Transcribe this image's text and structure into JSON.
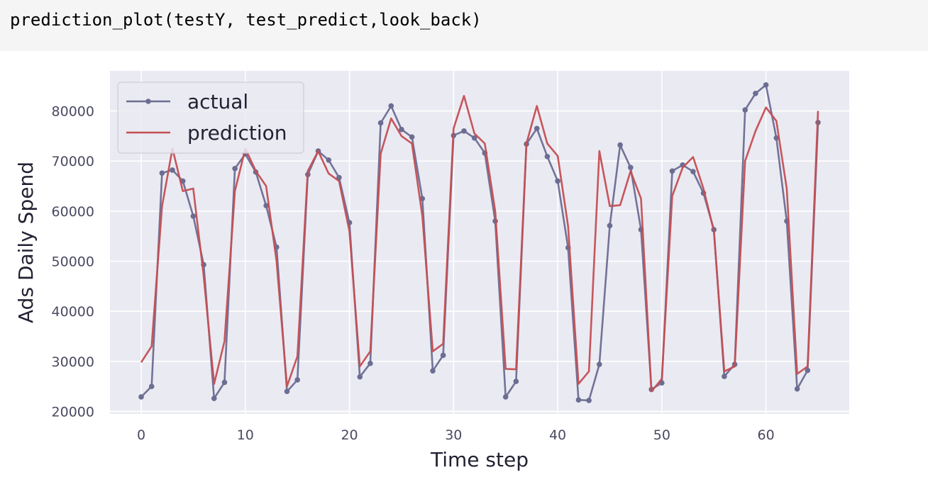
{
  "code_cell": {
    "source": "prediction_plot(testY, test_predict,look_back)"
  },
  "colors": {
    "plot_background": "#eaeaf2",
    "grid": "#ffffff",
    "actual": "#6b6d92",
    "prediction": "#c44e52",
    "tick_text": "#4a4a62",
    "label_text": "#222233"
  },
  "chart_data": {
    "type": "line",
    "title": "",
    "xlabel": "Time step",
    "ylabel": "Ads Daily Spend",
    "xlim": [
      -3,
      68
    ],
    "ylim": [
      19500,
      88000
    ],
    "x_ticks": [
      0,
      10,
      20,
      30,
      40,
      50,
      60
    ],
    "y_ticks": [
      20000,
      30000,
      40000,
      50000,
      60000,
      70000,
      80000
    ],
    "grid": true,
    "legend": "top-left",
    "series": [
      {
        "name": "actual",
        "marker": "circle",
        "values": [
          22900,
          25000,
          67600,
          68200,
          66000,
          59000,
          49300,
          22600,
          25800,
          68500,
          71400,
          67800,
          61100,
          52800,
          24000,
          26300,
          67300,
          72000,
          70200,
          66700,
          57700,
          26900,
          29600,
          77600,
          81000,
          76300,
          74800,
          62500,
          28100,
          31200,
          75100,
          76000,
          74600,
          71600,
          58000,
          22900,
          26000,
          73400,
          76500,
          70900,
          66000,
          52700,
          22300,
          22200,
          29400,
          57100,
          73200,
          68700,
          56300,
          24400,
          25700,
          68000,
          69200,
          67900,
          63600,
          56300,
          27000,
          29400,
          80200,
          83500,
          85200,
          74600,
          58000,
          24500,
          28200,
          77700
        ]
      },
      {
        "name": "prediction",
        "marker": "none",
        "values": [
          29800,
          33000,
          61000,
          72500,
          64000,
          64500,
          47000,
          25500,
          34000,
          64000,
          72500,
          68000,
          65000,
          50000,
          25000,
          31000,
          68000,
          72000,
          67500,
          66000,
          56000,
          29000,
          32000,
          71500,
          78500,
          75000,
          73500,
          59000,
          32000,
          33500,
          76500,
          83000,
          75500,
          73500,
          60000,
          28500,
          28400,
          73500,
          81000,
          73500,
          71000,
          57000,
          25500,
          28000,
          72000,
          61000,
          61200,
          68000,
          62500,
          24000,
          26500,
          63000,
          68700,
          70800,
          64500,
          56000,
          28000,
          29000,
          70000,
          76000,
          80700,
          78000,
          64500,
          27500,
          29000,
          80000
        ]
      }
    ]
  }
}
